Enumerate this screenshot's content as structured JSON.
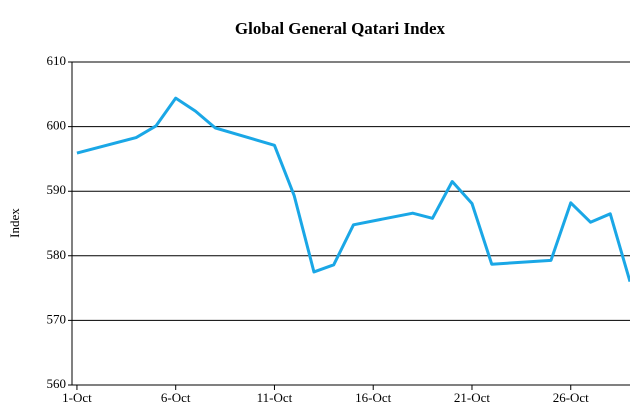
{
  "chart_data": {
    "type": "line",
    "title": "Global General Qatari Index",
    "ylabel": "Index",
    "x": [
      1,
      4,
      5,
      6,
      7,
      8,
      11,
      12,
      13,
      14,
      15,
      18,
      19,
      20,
      21,
      22,
      25,
      26,
      27,
      28,
      29
    ],
    "series": [
      {
        "name": "Index",
        "color": "#1aa7e6",
        "values": [
          595.9,
          598.3,
          600.1,
          604.4,
          602.4,
          599.8,
          597.1,
          589.3,
          577.5,
          578.6,
          584.8,
          586.6,
          585.8,
          591.5,
          588.1,
          578.7,
          579.3,
          588.2,
          585.2,
          586.5,
          576
        ]
      }
    ],
    "xlim": [
      0.75,
      29
    ],
    "xticks": [
      {
        "value": 1,
        "label": "1-Oct"
      },
      {
        "value": 6,
        "label": "6-Oct"
      },
      {
        "value": 11,
        "label": "11-Oct"
      },
      {
        "value": 16,
        "label": "16-Oct"
      },
      {
        "value": 21,
        "label": "21-Oct"
      },
      {
        "value": 26,
        "label": "26-Oct"
      }
    ],
    "ylim": [
      560,
      610
    ],
    "yticks": [
      560,
      570,
      580,
      590,
      600,
      610
    ],
    "grid": true
  }
}
